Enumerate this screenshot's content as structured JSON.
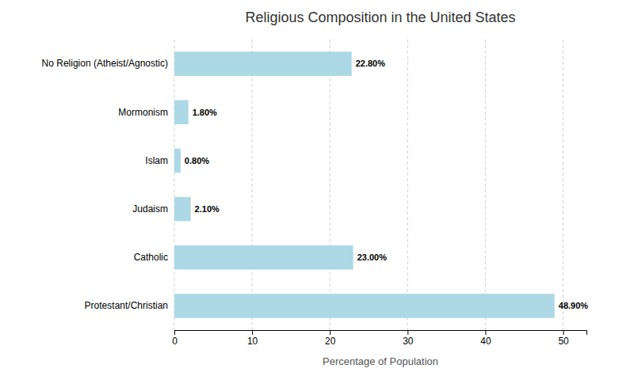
{
  "chart_data": {
    "type": "bar",
    "orientation": "horizontal",
    "title": "Religious Composition in the United States",
    "categories": [
      "Protestant/Christian",
      "Catholic",
      "Judaism",
      "Islam",
      "Mormonism",
      "No Religion (Atheist/Agnostic)"
    ],
    "values": [
      48.9,
      23.0,
      2.1,
      0.8,
      1.8,
      22.8
    ],
    "value_labels": [
      "48.90%",
      "23.00%",
      "2.10%",
      "0.80%",
      "1.80%",
      "22.80%"
    ],
    "data_labels": true,
    "color": "#add8e6",
    "xlabel": "Percentage of Population",
    "xlim": [
      0,
      53
    ],
    "xticks": [
      0,
      10,
      20,
      30,
      40,
      50
    ],
    "grid": true
  }
}
